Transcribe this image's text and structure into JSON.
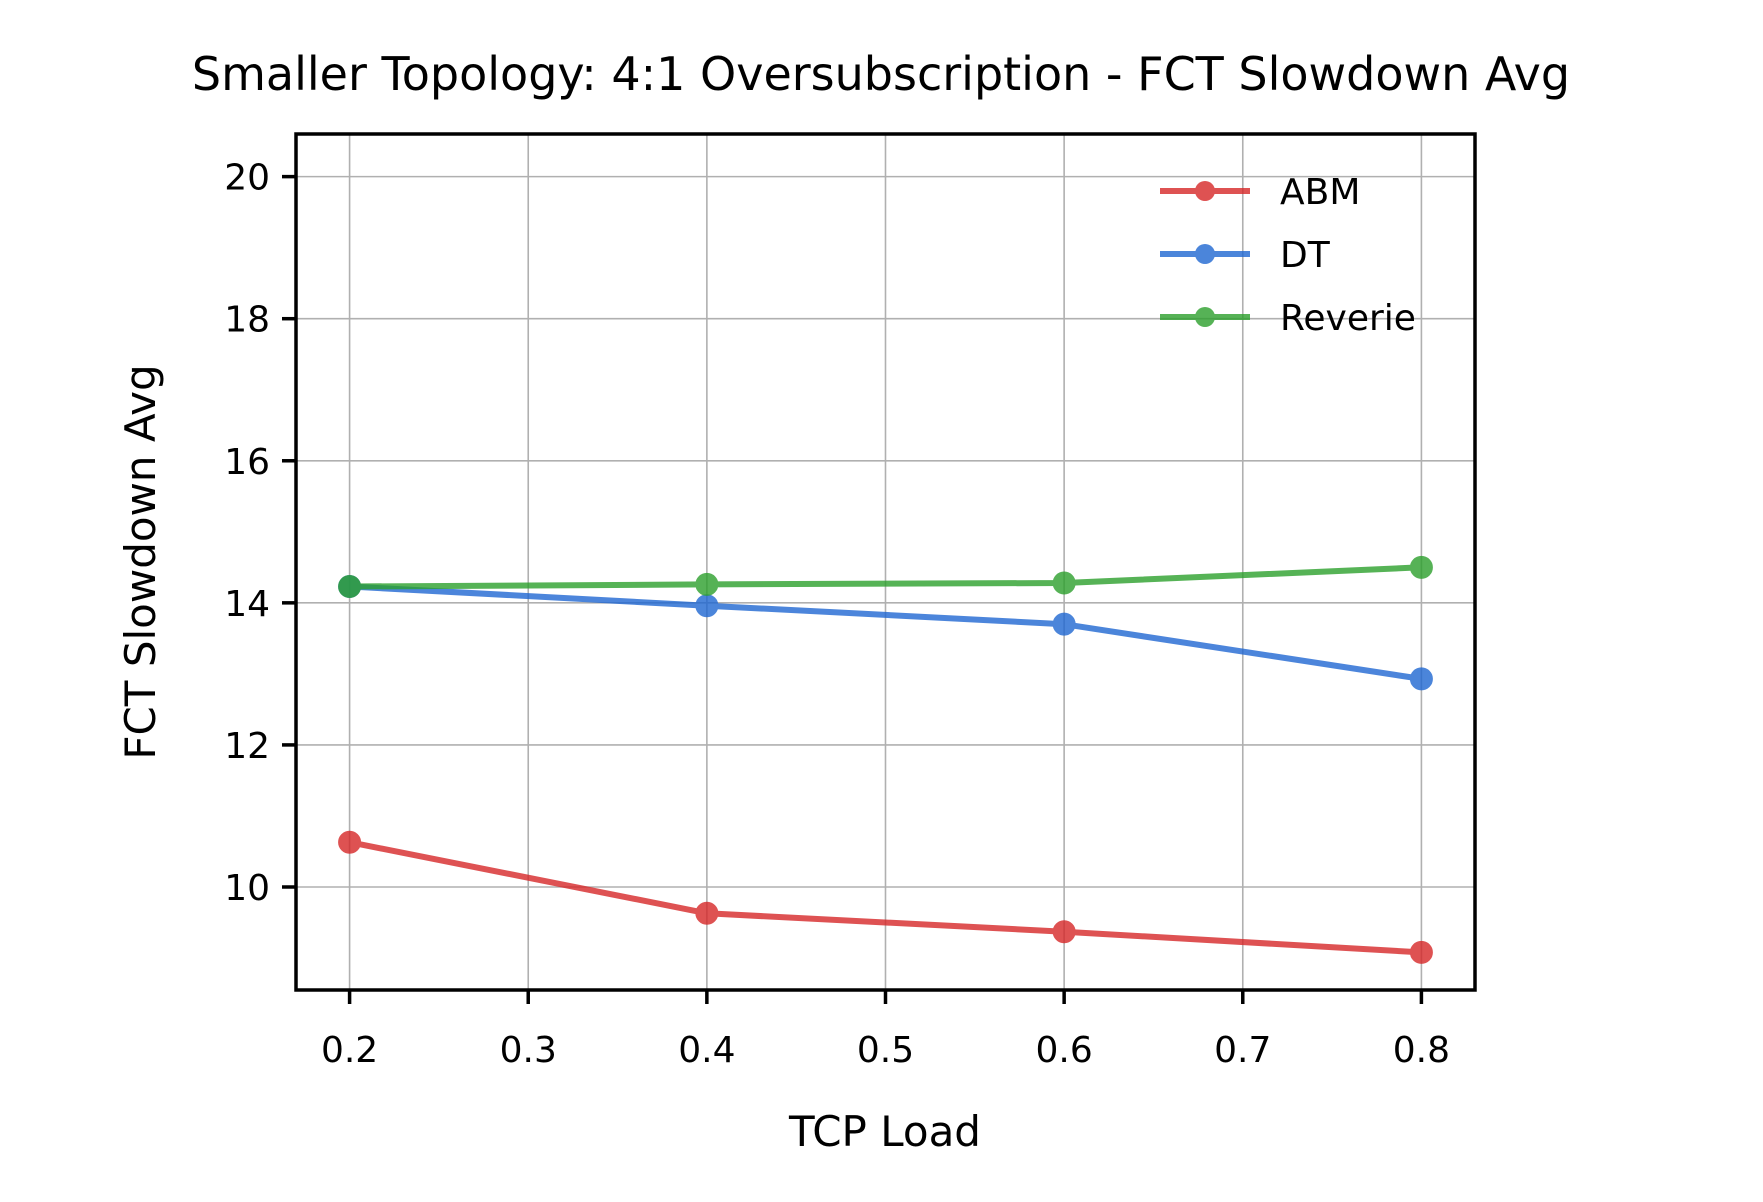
{
  "chart_data": {
    "type": "line",
    "title": "Smaller Topology: 4:1 Oversubscription - FCT Slowdown Avg",
    "xlabel": "TCP Load",
    "ylabel": "FCT Slowdown Avg",
    "x": [
      0.2,
      0.4,
      0.6,
      0.8
    ],
    "xticks": [
      0.2,
      0.3,
      0.4,
      0.5,
      0.6,
      0.7,
      0.8
    ],
    "xtick_labels": [
      "0.2",
      "0.3",
      "0.4",
      "0.5",
      "0.6",
      "0.7",
      "0.8"
    ],
    "yticks": [
      10,
      12,
      14,
      16,
      18,
      20
    ],
    "ytick_labels": [
      "10",
      "12",
      "14",
      "16",
      "18",
      "20"
    ],
    "xlim": [
      0.17,
      0.83
    ],
    "ylim": [
      8.55,
      20.6
    ],
    "grid": true,
    "legend_position": "top-right",
    "series": [
      {
        "name": "ABM",
        "color": "#d62728",
        "values": [
          10.63,
          9.63,
          9.37,
          9.08
        ]
      },
      {
        "name": "DT",
        "color": "#1f67d2",
        "values": [
          14.23,
          13.96,
          13.7,
          12.93
        ]
      },
      {
        "name": "Reverie",
        "color": "#2ca02c",
        "values": [
          14.23,
          14.26,
          14.28,
          14.5
        ]
      }
    ]
  }
}
